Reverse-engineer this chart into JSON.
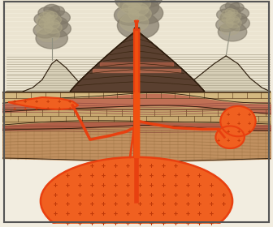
{
  "bg_color": "#f2ede0",
  "sky_color": "#f0ead8",
  "lava_orange": "#e84010",
  "lava_fill": "#f05010",
  "magma_fill": "#f06020",
  "outline_color": "#2a1a0a",
  "volcano_dark": "#5a4030",
  "volcano_mid": "#7a5a40",
  "brick_tan": "#c8a870",
  "brick_tan2": "#d4b880",
  "brick_dark": "#6a4a28",
  "reddish": "#c07055",
  "reddish2": "#b06048",
  "brown_mid": "#c09060",
  "brown_deep": "#b07840",
  "cross_color": "#c03808",
  "smoke_dark": "#807868",
  "smoke_light": "#b0a888"
}
